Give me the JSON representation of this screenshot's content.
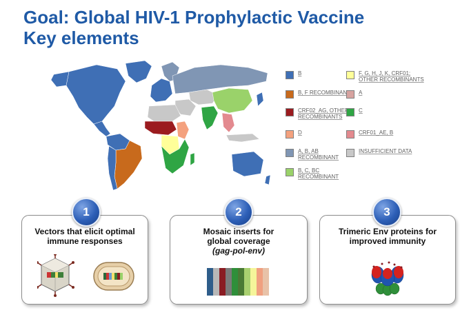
{
  "title": {
    "line1": "Goal: Global HIV-1 Prophylactic Vaccine",
    "line2": "Key elements"
  },
  "legend": [
    {
      "label": "B",
      "color": "#3f6fb5"
    },
    {
      "label": "F, G, H, J, K, CRF01; OTHER RECOMBINANTS",
      "color": "#ffff99"
    },
    {
      "label": "B, F RECOMBINANT",
      "color": "#c86a1c"
    },
    {
      "label": "A",
      "color": "#d7a3a0"
    },
    {
      "label": "CRF02_AG, OTHER RECOMBINANTS",
      "color": "#9b1b1f"
    },
    {
      "label": "C",
      "color": "#2fa544"
    },
    {
      "label": "D",
      "color": "#f4a17e"
    },
    {
      "label": "CRF01_AE, B",
      "color": "#e38a8f"
    },
    {
      "label": "A, B, AB RECOMBINANT",
      "color": "#8096b4"
    },
    {
      "label": "INSUFFICIENT DATA",
      "color": "#c8c8c8"
    },
    {
      "label": "B, C, BC RECOMBINANT",
      "color": "#9ad26a"
    }
  ],
  "elements": [
    {
      "number": "1",
      "title": "Vectors that elicit optimal immune responses",
      "subtitle": ""
    },
    {
      "number": "2",
      "title": "Mosaic inserts for global coverage",
      "subtitle": "(gag-pol-env)"
    },
    {
      "number": "3",
      "title": "Trimeric Env proteins for improved immunity",
      "subtitle": ""
    }
  ],
  "mosaic_colors": [
    "#2e5d8a",
    "#b7b7b7",
    "#8a1c22",
    "#7a7a7a",
    "#2f8f3a",
    "#4a7a35",
    "#a9d070",
    "#f5f59a",
    "#f0a080",
    "#e8c2a8"
  ]
}
